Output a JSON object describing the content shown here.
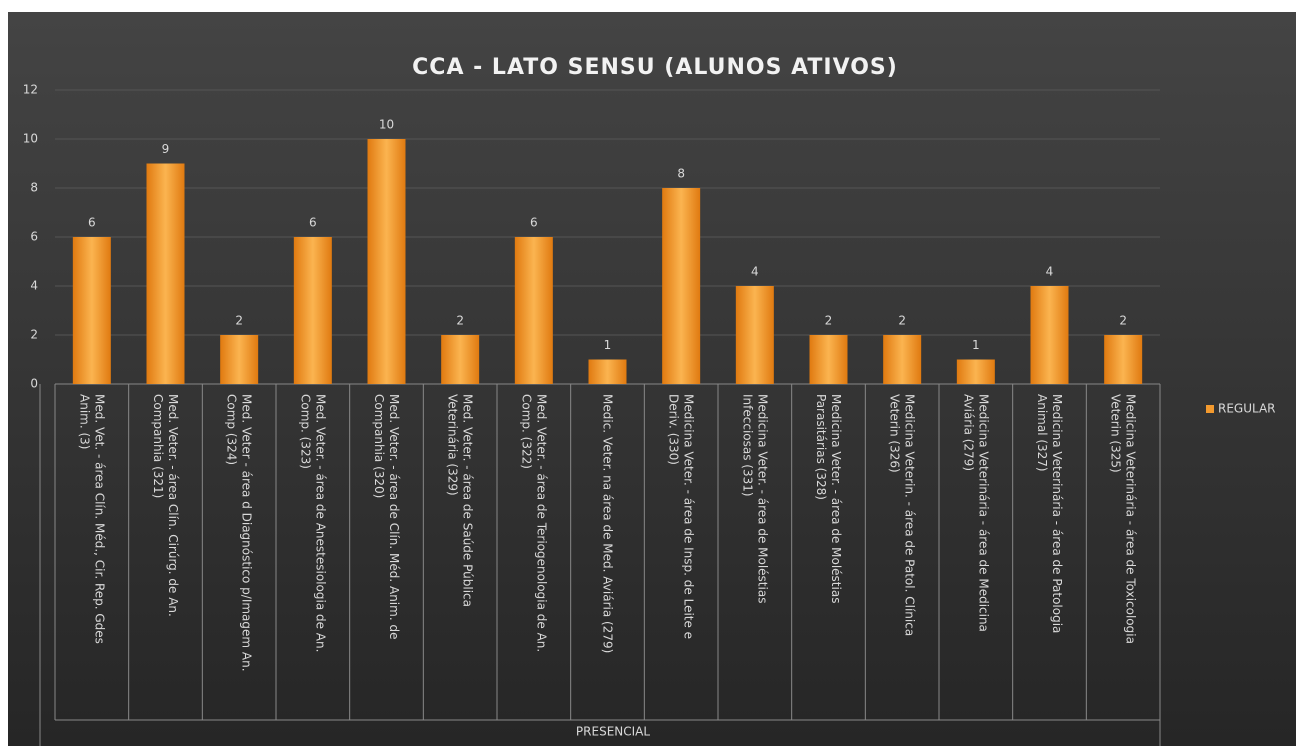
{
  "chart_data": {
    "type": "bar",
    "title": "CCA - LATO SENSU (ALUNOS ATIVOS)",
    "group_label": "PRESENCIAL",
    "categories": [
      "Med. Vet. - área Clín. Méd., Cir. Rep. Gdes Anim. (3)",
      "Med. Veter. - área Clín. Cirúrg. de An. Companhia (321)",
      "Med. Veter - área d Diagnóstico p/Imagem An. Comp (324)",
      "Med. Veter. - área de Anestesiologia de An. Comp. (323)",
      "Med. Veter. - área de Clín. Méd. Anim. de Companhia (320)",
      "Med. Veter. - área de Saúde Pública Veterinária (329)",
      "Med. Veter. - área de Teriogenologia de An. Comp. (322)",
      "Medic. Veter. na área de Med. Aviária (279)",
      "Medicina Veter. - área de Insp. de Leite e Deriv. (330)",
      "Medicina Veter. - área de Moléstias Infecciosas (331)",
      "Medicina Veter. - área de Moléstias Parasitárias (328)",
      "Medicina Veterin. - área de Patol. Clínica Veterin (326)",
      "Medicina Veterinária - área de Medicina Aviária (279)",
      "Medicina Veterinária - área de Patologia Animal (327)",
      "Medicina Veterinária - área de Toxicologia Veterin (325)"
    ],
    "series": [
      {
        "name": "REGULAR",
        "color": "#f39a2e",
        "values": [
          6,
          9,
          2,
          6,
          10,
          2,
          6,
          1,
          8,
          4,
          2,
          2,
          1,
          4,
          2
        ]
      }
    ],
    "ylim": [
      0,
      12
    ],
    "yticks": [
      0,
      2,
      4,
      6,
      8,
      10,
      12
    ],
    "grid": true,
    "legend": "right"
  }
}
